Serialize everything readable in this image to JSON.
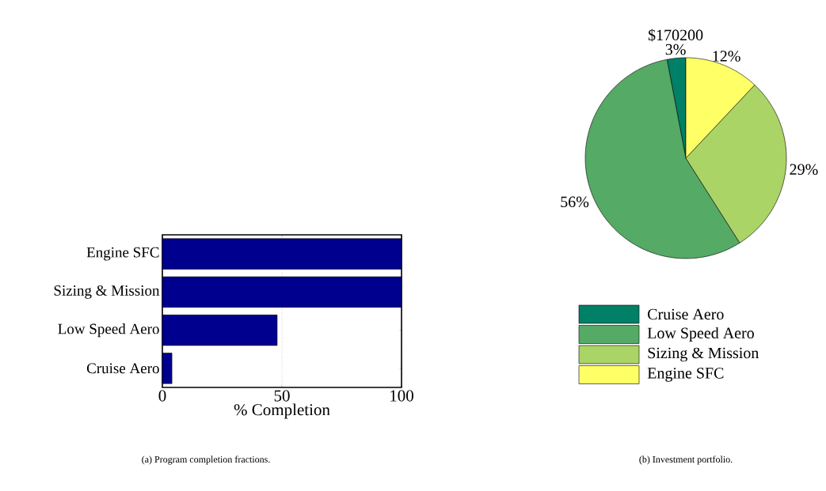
{
  "chart_data": [
    {
      "type": "bar",
      "orientation": "horizontal",
      "categories": [
        "Engine SFC",
        "Sizing & Mission",
        "Low Speed Aero",
        "Cruise Aero"
      ],
      "values": [
        100,
        100,
        48,
        4
      ],
      "color": "#00008f",
      "xlim": [
        0,
        100
      ],
      "xticks": [
        0,
        50,
        100
      ],
      "xlabel": "% Completion",
      "grid": "x",
      "annotations": [
        "(a)  Program completion fractions."
      ]
    },
    {
      "type": "pie",
      "categories": [
        "Cruise Aero",
        "Low Speed Aero",
        "Sizing & Mission",
        "Engine SFC"
      ],
      "values": [
        3,
        56,
        29,
        12
      ],
      "colors": [
        "#008066",
        "#55aa66",
        "#aad466",
        "#ffff66"
      ],
      "value_labels": [
        "3%",
        "56%",
        "29%",
        "12%"
      ],
      "legend": "bottom",
      "annotations": [
        "$170200",
        "(b)  Investment portfolio."
      ]
    }
  ]
}
